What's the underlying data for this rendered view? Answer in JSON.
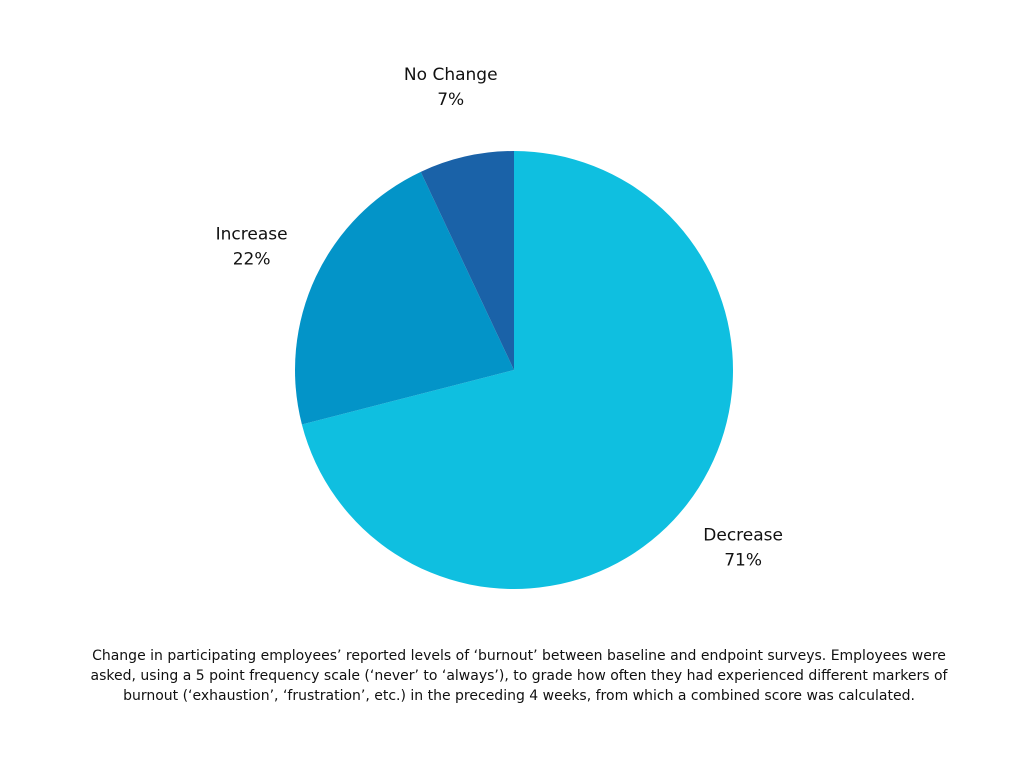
{
  "chart_data": {
    "type": "pie",
    "categories": [
      "Decrease",
      "Increase",
      "No Change"
    ],
    "values": [
      71,
      22,
      7
    ],
    "value_labels": [
      "71%",
      "22%",
      "7%"
    ],
    "colors": [
      "#0fbfe0",
      "#0394c8",
      "#1a62a8"
    ],
    "caption": "Change in participating employees’ reported levels of ‘burnout’ between baseline and endpoint surveys. Employees were asked, using a 5 point frequency scale (‘never’ to ‘always’), to grade how often they had experienced different markers of burnout (‘exhaustion’, ‘frustration’, etc.) in the preceding 4 weeks, from which a combined score was calculated."
  }
}
